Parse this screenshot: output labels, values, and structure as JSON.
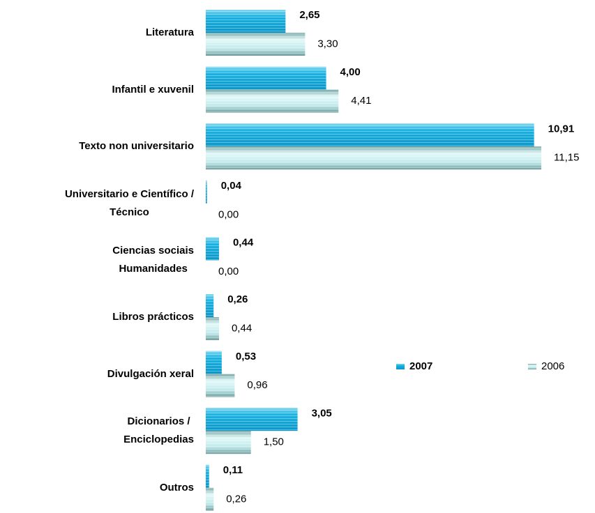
{
  "chart_data": {
    "type": "bar",
    "orientation": "horizontal",
    "categories": [
      "Literatura",
      "Infantil e xuvenil",
      "Texto non universitario",
      "Universitario e Científico /\nTécnico",
      "Ciencias sociais\nHumanidades",
      "Libros prácticos",
      "Divulgación xeral",
      "Dicionarios /\nEnciclopedias",
      "Outros"
    ],
    "series": [
      {
        "name": "2007",
        "color": "#19b2e2",
        "values": [
          2.65,
          4.0,
          10.91,
          0.04,
          0.44,
          0.26,
          0.53,
          3.05,
          0.11
        ],
        "value_labels": [
          "2,65",
          "4,00",
          "10,91",
          "0,04",
          "0,44",
          "0,26",
          "0,53",
          "3,05",
          "0,11"
        ]
      },
      {
        "name": "2006",
        "color": "#bfe9ea",
        "values": [
          3.3,
          4.41,
          11.15,
          0.0,
          0.0,
          0.44,
          0.96,
          1.5,
          0.26
        ],
        "value_labels": [
          "3,30",
          "4,41",
          "11,15",
          "0,00",
          "0,00",
          "0,44",
          "0,96",
          "1,50",
          "0,26"
        ]
      }
    ],
    "legend": "right"
  }
}
